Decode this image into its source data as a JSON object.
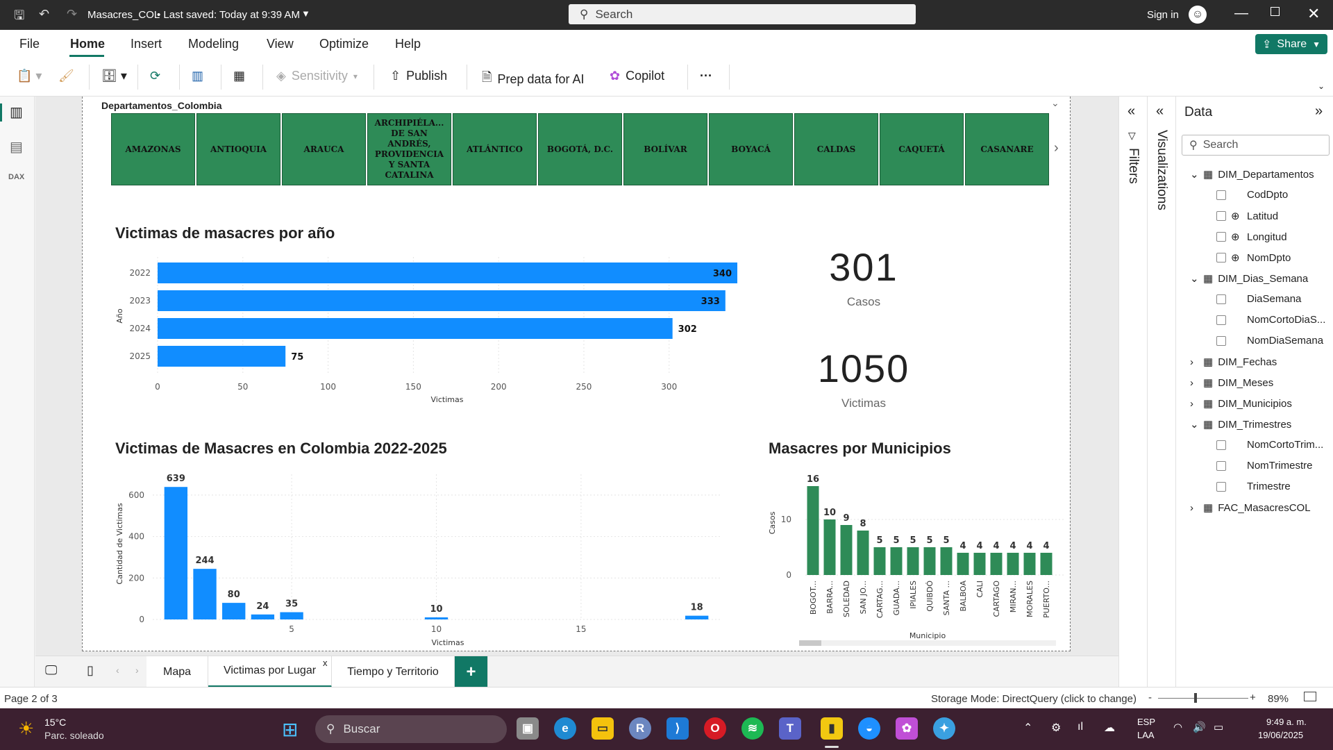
{
  "titlebar": {
    "title": "Masacres_COL",
    "saved": "• Last saved: Today at 9:39 AM",
    "search": "Search",
    "signin": "Sign in"
  },
  "menu": {
    "file": "File",
    "home": "Home",
    "insert": "Insert",
    "modeling": "Modeling",
    "view": "View",
    "optimize": "Optimize",
    "help": "Help",
    "share": "Share"
  },
  "ribbon": {
    "sensitivity": "Sensitivity",
    "publish": "Publish",
    "prep": "Prep data for AI",
    "copilot": "Copilot",
    "more": "···"
  },
  "slicer": {
    "title": "Departamentos_Colombia",
    "items": [
      "AMAZONAS",
      "ANTIOQUIA",
      "ARAUCA",
      "ARCHIPIÉLA... DE SAN ANDRÉS, PROVIDENCIA Y SANTA CATALINA",
      "ATLÁNTICO",
      "BOGOTÁ, D.C.",
      "BOLÍVAR",
      "BOYACÁ",
      "CALDAS",
      "CAQUETÁ",
      "CASANARE"
    ]
  },
  "cards": [
    {
      "value": "301",
      "label": "Casos"
    },
    {
      "value": "1050",
      "label": "Victimas"
    }
  ],
  "colors": {
    "bar_blue": "#118dff",
    "bar_green": "#2e8b57",
    "accent": "#117865"
  },
  "chart_data": [
    {
      "type": "bar",
      "orientation": "horizontal",
      "title": "Victimas de masacres por año",
      "categories": [
        "2022",
        "2023",
        "2024",
        "2025"
      ],
      "values": [
        340,
        333,
        302,
        75
      ],
      "xlabel": "Victimas",
      "ylabel": "Año",
      "xlim": [
        0,
        340
      ],
      "xticks": [
        "0",
        "50",
        "100",
        "150",
        "200",
        "250",
        "300"
      ]
    },
    {
      "type": "bar",
      "title": "Victimas de Masacres en Colombia 2022-2025",
      "x": [
        1,
        2,
        3,
        4,
        5,
        10,
        19
      ],
      "values": [
        639,
        244,
        80,
        24,
        35,
        10,
        18
      ],
      "xlabel": "Victimas",
      "ylabel": "Cantidad de Victimas",
      "xlim": [
        0.2,
        19.8
      ],
      "ylim": [
        0,
        700
      ],
      "xticks": [
        "5",
        "10",
        "15"
      ],
      "yticks": [
        "0",
        "200",
        "400",
        "600"
      ]
    },
    {
      "type": "bar",
      "title": "Masacres por Municipios",
      "categories": [
        "BOGOT...",
        "BARRA...",
        "SOLEDAD",
        "SAN JO...",
        "CARTAG...",
        "GUADA...",
        "IPIALES",
        "QUIBDÓ",
        "SANTA ...",
        "BALBOA",
        "CALI",
        "CARTAGO",
        "MIRAN...",
        "MORALES",
        "PUERTO..."
      ],
      "values": [
        16,
        10,
        9,
        8,
        5,
        5,
        5,
        5,
        5,
        4,
        4,
        4,
        4,
        4,
        4
      ],
      "xlabel": "Municipio",
      "ylabel": "Casos",
      "ylim": [
        0,
        16
      ],
      "yticks": [
        "0",
        "10"
      ]
    }
  ],
  "panels": {
    "filters": "Filters",
    "visualizations": "Visualizations",
    "data": "Data",
    "search": "Search"
  },
  "fields": [
    {
      "name": "DIM_Departamentos",
      "kind": "table",
      "open": true
    },
    {
      "name": "CodDpto",
      "kind": "field"
    },
    {
      "name": "Latitud",
      "kind": "geo"
    },
    {
      "name": "Longitud",
      "kind": "geo"
    },
    {
      "name": "NomDpto",
      "kind": "geo"
    },
    {
      "name": "DIM_Dias_Semana",
      "kind": "table",
      "open": true
    },
    {
      "name": "DiaSemana",
      "kind": "field"
    },
    {
      "name": "NomCortoDiaS...",
      "kind": "field"
    },
    {
      "name": "NomDiaSemana",
      "kind": "field"
    },
    {
      "name": "DIM_Fechas",
      "kind": "table",
      "open": false
    },
    {
      "name": "DIM_Meses",
      "kind": "table",
      "open": false
    },
    {
      "name": "DIM_Municipios",
      "kind": "table",
      "open": false
    },
    {
      "name": "DIM_Trimestres",
      "kind": "table",
      "open": true
    },
    {
      "name": "NomCortoTrim...",
      "kind": "field"
    },
    {
      "name": "NomTrimestre",
      "kind": "field"
    },
    {
      "name": "Trimestre",
      "kind": "field"
    },
    {
      "name": "FAC_MasacresCOL",
      "kind": "table",
      "open": false
    }
  ],
  "tabs": [
    {
      "label": "Mapa"
    },
    {
      "label": "Victimas por Lugar",
      "active": true
    },
    {
      "label": "Tiempo y Territorio"
    }
  ],
  "tab_close": "x",
  "tab_add": "+",
  "status": {
    "page": "Page 2 of 3",
    "storage": "Storage Mode: DirectQuery (click to change)",
    "zoom": "89%"
  },
  "taskbar": {
    "temp": "15°C",
    "weather": "Parc. soleado",
    "search": "Buscar",
    "lang1": "ESP",
    "lang2": "LAA",
    "time": "9:49 a. m.",
    "date": "19/06/2025"
  }
}
